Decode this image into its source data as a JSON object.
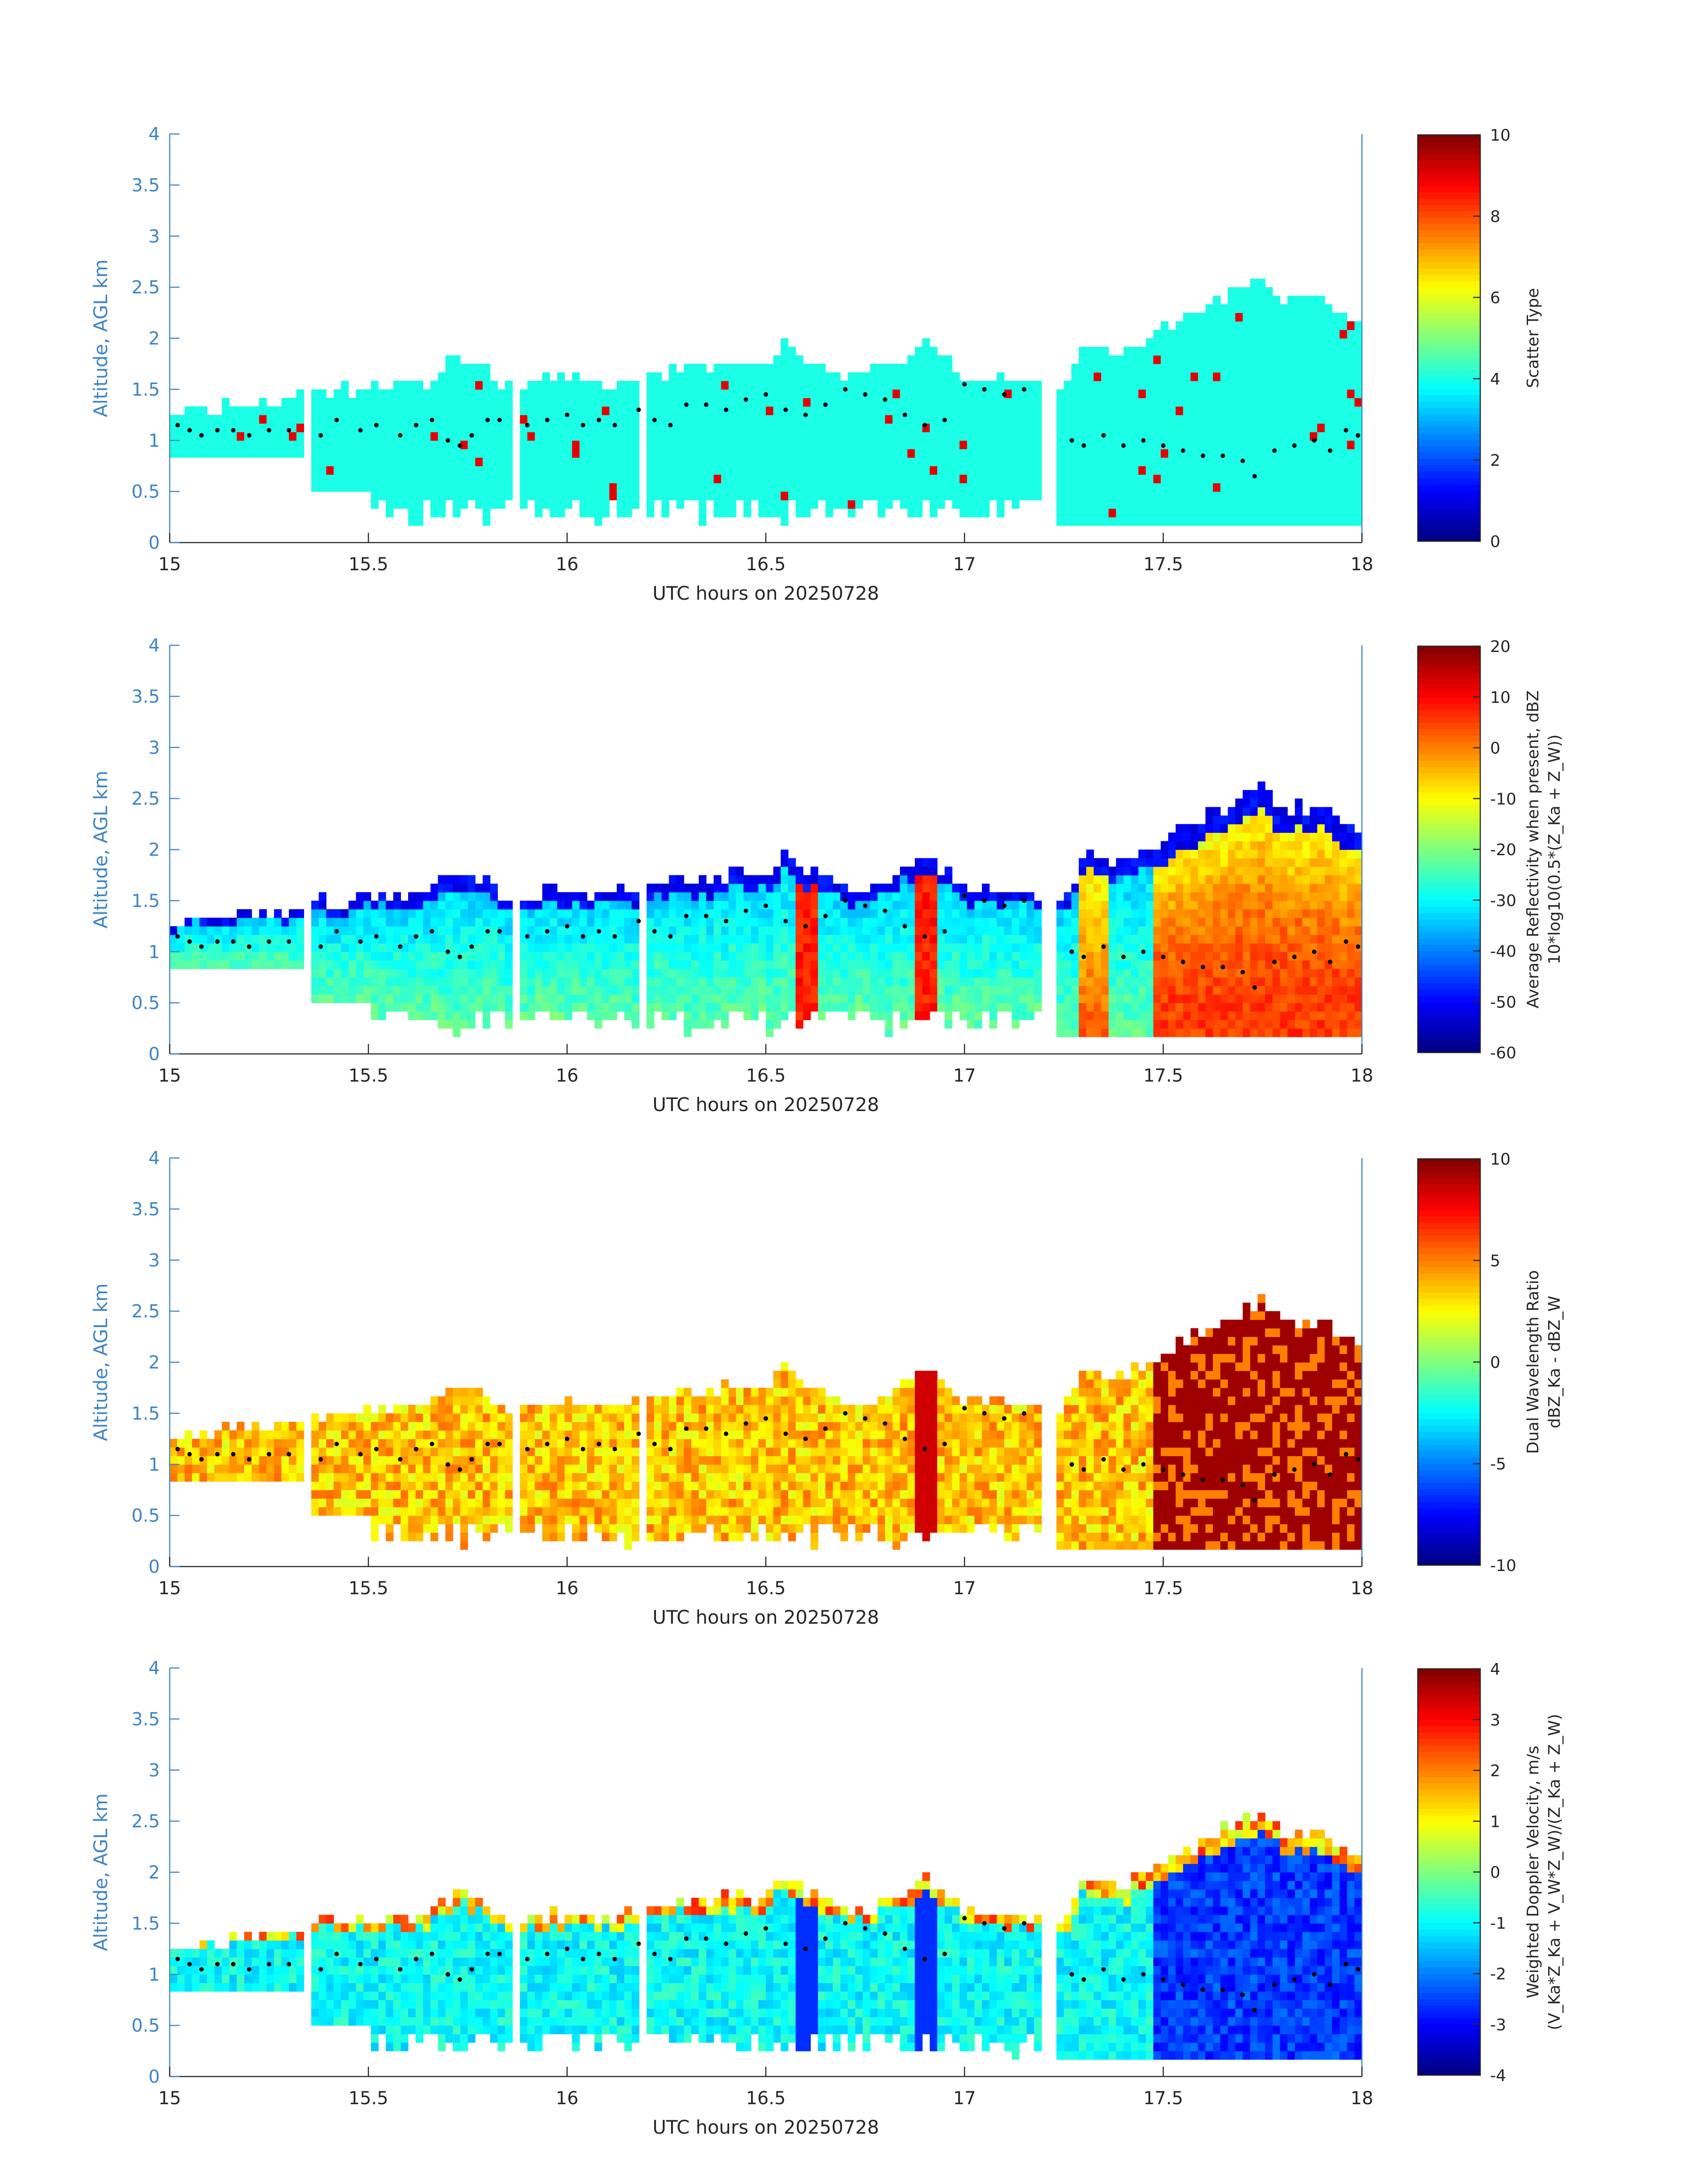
{
  "chart_data": [
    {
      "type": "heatmap",
      "xlabel": "UTC hours on 20250728",
      "ylabel": "Altitude, AGL km",
      "xlim": [
        15,
        18
      ],
      "ylim": [
        0,
        4
      ],
      "xticks": [
        "15",
        "15.5",
        "16",
        "16.5",
        "17",
        "17.5",
        "18"
      ],
      "yticks": [
        "0",
        "0.5",
        "1",
        "1.5",
        "2",
        "2.5",
        "3",
        "3.5",
        "4"
      ],
      "colorbar": {
        "label_lines": [
          "Scatter Type"
        ],
        "range": [
          0,
          10
        ],
        "ticks": [
          "0",
          "2",
          "4",
          "6",
          "8",
          "10"
        ],
        "colormap": "jet"
      },
      "description_of_field": "mostly uniform value ~4 (cyan) with sparse cells ~9 (red-orange) near the surface",
      "echo_top_km": [
        [
          15.0,
          1.25
        ],
        [
          15.05,
          1.3
        ],
        [
          15.1,
          1.3
        ],
        [
          15.2,
          1.4
        ],
        [
          15.3,
          1.35
        ],
        [
          15.35,
          1.5
        ],
        [
          15.45,
          1.5
        ],
        [
          15.55,
          1.55
        ],
        [
          15.65,
          1.6
        ],
        [
          15.72,
          1.8
        ],
        [
          15.8,
          1.7
        ],
        [
          15.85,
          1.5
        ],
        [
          15.9,
          1.55
        ],
        [
          16.0,
          1.6
        ],
        [
          16.1,
          1.55
        ],
        [
          16.2,
          1.65
        ],
        [
          16.3,
          1.7
        ],
        [
          16.4,
          1.75
        ],
        [
          16.5,
          1.75
        ],
        [
          16.55,
          2.0
        ],
        [
          16.6,
          1.8
        ],
        [
          16.7,
          1.6
        ],
        [
          16.8,
          1.7
        ],
        [
          16.9,
          1.95
        ],
        [
          16.95,
          1.8
        ],
        [
          17.0,
          1.6
        ],
        [
          17.1,
          1.6
        ],
        [
          17.2,
          1.55
        ],
        [
          17.25,
          1.5
        ],
        [
          17.3,
          1.95
        ],
        [
          17.4,
          1.85
        ],
        [
          17.5,
          2.1
        ],
        [
          17.6,
          2.3
        ],
        [
          17.7,
          2.5
        ],
        [
          17.75,
          2.6
        ],
        [
          17.8,
          2.4
        ],
        [
          17.9,
          2.4
        ],
        [
          18.0,
          2.1
        ]
      ]
    },
    {
      "type": "heatmap",
      "xlabel": "UTC hours on 20250728",
      "ylabel": "Altitude, AGL km",
      "xlim": [
        15,
        18
      ],
      "ylim": [
        0,
        4
      ],
      "xticks": [
        "15",
        "15.5",
        "16",
        "16.5",
        "17",
        "17.5",
        "18"
      ],
      "yticks": [
        "0",
        "0.5",
        "1",
        "1.5",
        "2",
        "2.5",
        "3",
        "3.5",
        "4"
      ],
      "colorbar": {
        "label_lines": [
          "Average Reflectivity when present, dBZ",
          "10*log10(0.5*(Z_Ka + Z_W))"
        ],
        "range": [
          -60,
          20
        ],
        "ticks": [
          "-60",
          "-50",
          "-40",
          "-30",
          "-20",
          "-10",
          "0",
          "10",
          "20"
        ],
        "colormap": "jet"
      },
      "description_of_field": "-40 to -20 dBZ in early cloud, columns reaching 0 to 10 dBZ near 16.6 and 16.9 h, 0 to 15 dBZ after 17.5 h"
    },
    {
      "type": "heatmap",
      "xlabel": "UTC hours on 20250728",
      "ylabel": "Altitude, AGL km",
      "xlim": [
        15,
        18
      ],
      "ylim": [
        0,
        4
      ],
      "xticks": [
        "15",
        "15.5",
        "16",
        "16.5",
        "17",
        "17.5",
        "18"
      ],
      "yticks": [
        "0",
        "0.5",
        "1",
        "1.5",
        "2",
        "2.5",
        "3",
        "3.5",
        "4"
      ],
      "colorbar": {
        "label_lines": [
          "Dual Wavelength Ratio",
          "dBZ_Ka - dBZ_W"
        ],
        "range": [
          -10,
          10
        ],
        "ticks": [
          "-10",
          "-5",
          "0",
          "5",
          "10"
        ],
        "colormap": "jet"
      },
      "description_of_field": "mostly 2 to 5 dB, saturated 10 dB above 17.5 h"
    },
    {
      "type": "heatmap",
      "xlabel": "UTC hours on 20250728",
      "ylabel": "Altitude, AGL km",
      "xlim": [
        15,
        18
      ],
      "ylim": [
        0,
        4
      ],
      "xticks": [
        "15",
        "15.5",
        "16",
        "16.5",
        "17",
        "17.5",
        "18"
      ],
      "yticks": [
        "0",
        "0.5",
        "1",
        "1.5",
        "2",
        "2.5",
        "3",
        "3.5",
        "4"
      ],
      "colorbar": {
        "label_lines": [
          "Weighted Doppler Velocity, m/s",
          "(V_Ka*Z_Ka + V_W*Z_W)/(Z_Ka + Z_W)"
        ],
        "range": [
          -4,
          4
        ],
        "ticks": [
          "-4",
          "-3",
          "-2",
          "-1",
          "0",
          "1",
          "2",
          "3",
          "4"
        ],
        "colormap": "jet"
      },
      "description_of_field": "mostly -1 to 0 m/s, -2 to -4 m/s in precipitating columns and after 17.5 h"
    }
  ],
  "cloud_base_dots_km": [
    [
      15.02,
      1.15
    ],
    [
      15.05,
      1.1
    ],
    [
      15.08,
      1.05
    ],
    [
      15.12,
      1.1
    ],
    [
      15.16,
      1.1
    ],
    [
      15.2,
      1.05
    ],
    [
      15.25,
      1.1
    ],
    [
      15.3,
      1.1
    ],
    [
      15.38,
      1.05
    ],
    [
      15.42,
      1.2
    ],
    [
      15.48,
      1.1
    ],
    [
      15.52,
      1.15
    ],
    [
      15.58,
      1.05
    ],
    [
      15.62,
      1.15
    ],
    [
      15.66,
      1.2
    ],
    [
      15.7,
      1.0
    ],
    [
      15.73,
      0.95
    ],
    [
      15.76,
      1.05
    ],
    [
      15.8,
      1.2
    ],
    [
      15.83,
      1.2
    ],
    [
      15.9,
      1.15
    ],
    [
      15.95,
      1.2
    ],
    [
      16.0,
      1.25
    ],
    [
      16.04,
      1.15
    ],
    [
      16.08,
      1.2
    ],
    [
      16.12,
      1.15
    ],
    [
      16.18,
      1.3
    ],
    [
      16.22,
      1.2
    ],
    [
      16.26,
      1.15
    ],
    [
      16.3,
      1.35
    ],
    [
      16.35,
      1.35
    ],
    [
      16.4,
      1.3
    ],
    [
      16.45,
      1.4
    ],
    [
      16.5,
      1.45
    ],
    [
      16.55,
      1.3
    ],
    [
      16.6,
      1.25
    ],
    [
      16.65,
      1.35
    ],
    [
      16.7,
      1.5
    ],
    [
      16.75,
      1.45
    ],
    [
      16.8,
      1.4
    ],
    [
      16.85,
      1.25
    ],
    [
      16.9,
      1.15
    ],
    [
      16.95,
      1.2
    ],
    [
      17.0,
      1.55
    ],
    [
      17.05,
      1.5
    ],
    [
      17.1,
      1.45
    ],
    [
      17.15,
      1.5
    ],
    [
      17.27,
      1.0
    ],
    [
      17.3,
      0.95
    ],
    [
      17.35,
      1.05
    ],
    [
      17.4,
      0.95
    ],
    [
      17.45,
      1.0
    ],
    [
      17.5,
      0.95
    ],
    [
      17.55,
      0.9
    ],
    [
      17.6,
      0.85
    ],
    [
      17.65,
      0.85
    ],
    [
      17.7,
      0.8
    ],
    [
      17.73,
      0.65
    ],
    [
      17.78,
      0.9
    ],
    [
      17.83,
      0.95
    ],
    [
      17.88,
      1.0
    ],
    [
      17.92,
      0.9
    ],
    [
      17.96,
      1.1
    ],
    [
      17.99,
      1.05
    ]
  ]
}
